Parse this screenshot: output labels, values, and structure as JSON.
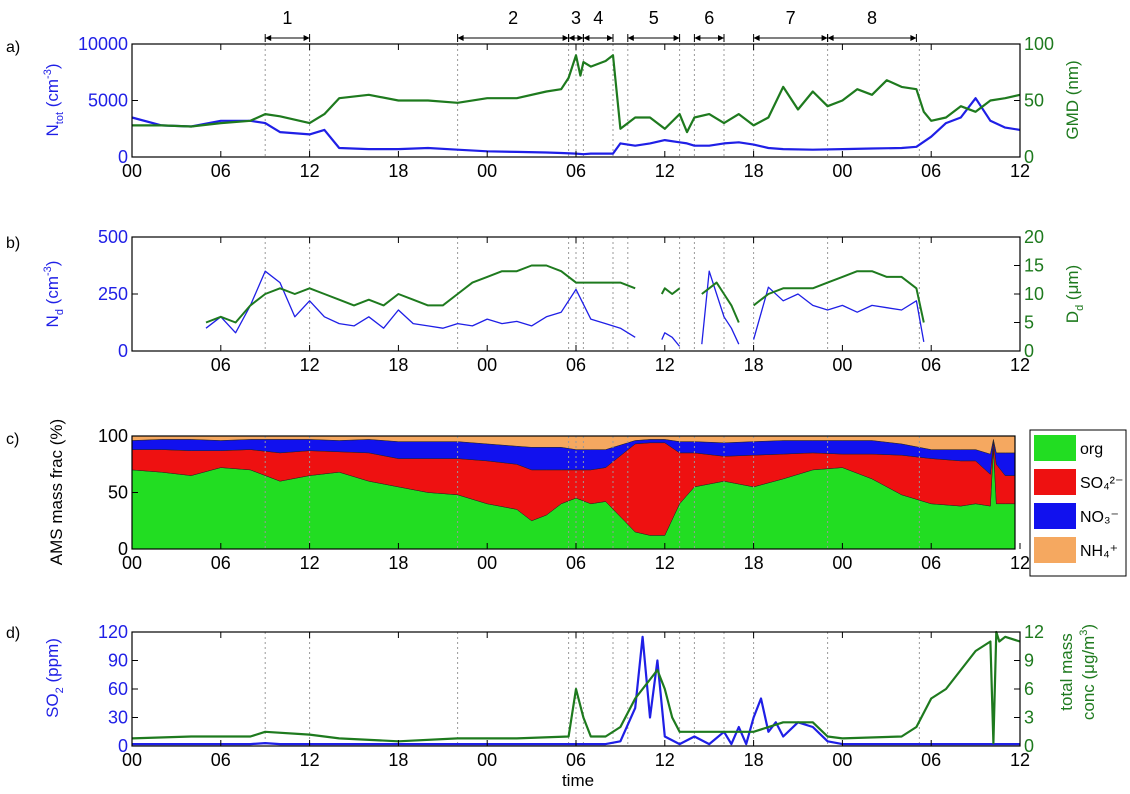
{
  "colors": {
    "blue": "#1f1fe6",
    "green": "#1e7a1e",
    "org": "#22dd22",
    "so4": "#ee1111",
    "no3": "#1111ee",
    "nh4": "#f5a860",
    "axis": "#000000",
    "guide": "#999999"
  },
  "time_ticks": [
    "00",
    "06",
    "12",
    "18",
    "00",
    "06",
    "12",
    "18",
    "00",
    "06",
    "12"
  ],
  "xlabel": "time",
  "periods": {
    "labels": [
      "1",
      "2",
      "3",
      "4",
      "5",
      "6",
      "7",
      "8"
    ],
    "ranges_h": [
      [
        9,
        12
      ],
      [
        22,
        29.5
      ],
      [
        29.5,
        30.5
      ],
      [
        30.5,
        32.5
      ],
      [
        33.5,
        37
      ],
      [
        38,
        40
      ],
      [
        42,
        47
      ],
      [
        47,
        53
      ]
    ]
  },
  "guide_lines_h": [
    9,
    12,
    22,
    29.5,
    30,
    30.5,
    32.5,
    33.5,
    37,
    38,
    40,
    42,
    47,
    53.2
  ],
  "panel_tags": [
    "a)",
    "b)",
    "c)",
    "d)"
  ],
  "chart_data": [
    {
      "type": "line",
      "panel": "a",
      "x_unit": "hours from first 00 tick",
      "xlim": [
        0,
        60
      ],
      "left_axis": {
        "label_main": "N",
        "label_sub": "tot",
        "label_unit": " (cm",
        "label_sup": "-3",
        "label_close": ")",
        "ylim": [
          0,
          10000
        ],
        "ticks": [
          "0",
          "5000",
          "10000"
        ]
      },
      "right_axis": {
        "label": "GMD (nm)",
        "ylim": [
          0,
          100
        ],
        "ticks": [
          "0",
          "50",
          "100"
        ]
      },
      "series": [
        {
          "color": "blue",
          "axis": "left",
          "x": [
            0,
            2,
            4,
            6,
            8,
            9,
            10,
            12,
            13,
            14,
            16,
            18,
            20,
            22,
            24,
            26,
            28,
            29,
            30,
            30.5,
            31,
            32,
            32.5,
            33,
            34,
            35,
            36,
            37,
            37.5,
            38,
            39,
            40,
            41,
            42,
            43,
            44,
            46,
            48,
            50,
            52,
            53,
            54,
            55,
            56,
            57,
            58,
            59,
            60
          ],
          "y": [
            3500,
            2800,
            2700,
            3200,
            3200,
            3000,
            2200,
            2000,
            2400,
            800,
            700,
            700,
            800,
            650,
            500,
            450,
            400,
            350,
            300,
            250,
            300,
            300,
            300,
            1200,
            1000,
            1200,
            1500,
            1300,
            1200,
            1000,
            1000,
            1200,
            1300,
            1100,
            800,
            700,
            650,
            700,
            750,
            800,
            900,
            1800,
            3000,
            3500,
            5200,
            3200,
            2600,
            2400
          ]
        },
        {
          "color": "green",
          "axis": "right",
          "x": [
            0,
            2,
            4,
            6,
            8,
            9,
            10,
            12,
            13,
            14,
            16,
            18,
            20,
            22,
            24,
            26,
            28,
            29,
            29.5,
            30,
            30.3,
            30.5,
            31,
            32,
            32.5,
            33,
            34,
            35,
            36,
            37,
            37.5,
            38,
            39,
            40,
            41,
            42,
            43,
            44,
            45,
            46,
            47,
            48,
            49,
            50,
            51,
            52,
            53,
            53.5,
            54,
            55,
            56,
            57,
            58,
            59,
            60
          ],
          "y": [
            28,
            28,
            27,
            30,
            32,
            38,
            36,
            30,
            38,
            52,
            55,
            50,
            50,
            48,
            52,
            52,
            58,
            60,
            70,
            90,
            72,
            84,
            80,
            85,
            90,
            25,
            35,
            35,
            25,
            38,
            22,
            35,
            38,
            30,
            38,
            28,
            35,
            62,
            42,
            58,
            45,
            50,
            60,
            55,
            68,
            62,
            60,
            40,
            32,
            35,
            45,
            40,
            50,
            52,
            55
          ]
        }
      ]
    },
    {
      "type": "line",
      "panel": "b",
      "x_unit": "hours from first 00 tick",
      "xlim": [
        0,
        60
      ],
      "left_axis": {
        "label_main": "N",
        "label_sub": "d",
        "label_unit": " (cm",
        "label_sup": "-3",
        "label_close": ")",
        "ylim": [
          0,
          500
        ],
        "ticks": [
          "0",
          "250",
          "500"
        ]
      },
      "right_axis": {
        "label_main": "D",
        "label_sub": "d",
        "label_unit": " (μm)",
        "ylim": [
          0,
          20
        ],
        "ticks": [
          "0",
          "5",
          "10",
          "15",
          "20"
        ]
      },
      "series": [
        {
          "color": "blue",
          "axis": "left",
          "segments": [
            {
              "x": [
                5,
                6,
                7,
                8,
                9,
                10,
                11,
                12,
                13,
                14,
                15,
                16,
                17,
                18,
                19,
                20,
                21,
                22,
                23,
                24,
                25,
                26,
                27,
                28,
                29,
                30,
                31,
                32,
                33,
                34
              ],
              "y": [
                100,
                150,
                80,
                200,
                350,
                300,
                150,
                220,
                150,
                120,
                110,
                150,
                100,
                180,
                120,
                110,
                100,
                120,
                110,
                140,
                120,
                130,
                110,
                150,
                170,
                270,
                140,
                120,
                100,
                60
              ]
            },
            {
              "x": [
                35.8,
                36,
                36.5,
                37
              ],
              "y": [
                50,
                80,
                60,
                20
              ]
            },
            {
              "x": [
                38.5,
                39,
                39.5,
                40,
                40.5,
                41
              ],
              "y": [
                30,
                350,
                250,
                150,
                100,
                30
              ]
            },
            {
              "x": [
                42,
                43,
                44,
                45,
                46,
                47,
                48,
                49,
                50,
                51,
                52,
                53,
                53.5
              ],
              "y": [
                50,
                280,
                220,
                250,
                200,
                180,
                200,
                170,
                200,
                190,
                180,
                220,
                40
              ]
            }
          ]
        },
        {
          "color": "green",
          "axis": "right",
          "segments": [
            {
              "x": [
                5,
                6,
                7,
                8,
                9,
                10,
                11,
                12,
                13,
                14,
                15,
                16,
                17,
                18,
                19,
                20,
                21,
                22,
                23,
                24,
                25,
                26,
                27,
                28,
                29,
                30,
                31,
                32,
                33,
                34
              ],
              "y": [
                5,
                6,
                5,
                8,
                10,
                11,
                10,
                11,
                10,
                9,
                8,
                9,
                8,
                10,
                9,
                8,
                8,
                10,
                12,
                13,
                14,
                14,
                15,
                15,
                14,
                12,
                12,
                12,
                12,
                11
              ]
            },
            {
              "x": [
                35.8,
                36,
                36.5,
                37
              ],
              "y": [
                10,
                11,
                10,
                11
              ]
            },
            {
              "x": [
                38.5,
                39,
                39.5,
                40,
                40.5,
                41
              ],
              "y": [
                10,
                11,
                12,
                10,
                8,
                5
              ]
            },
            {
              "x": [
                42,
                43,
                44,
                45,
                46,
                47,
                48,
                49,
                50,
                51,
                52,
                53,
                53.5
              ],
              "y": [
                8,
                10,
                11,
                11,
                11,
                12,
                13,
                14,
                14,
                13,
                13,
                11,
                5
              ]
            }
          ]
        }
      ]
    },
    {
      "type": "area",
      "panel": "c",
      "stacked": true,
      "xlim": [
        0,
        60
      ],
      "ylabel": "AMS mass frac (%)",
      "ylim": [
        0,
        100
      ],
      "yticks": [
        "0",
        "50",
        "100"
      ],
      "legend_position": "right",
      "x": [
        0,
        2,
        4,
        6,
        8,
        10,
        12,
        14,
        16,
        18,
        20,
        22,
        24,
        26,
        27,
        28,
        29,
        30,
        31,
        32,
        34,
        35,
        36,
        37,
        38,
        40,
        42,
        44,
        46,
        48,
        50,
        52,
        54,
        56,
        57,
        58,
        58.2,
        58.4,
        59,
        60
      ],
      "series": [
        {
          "name": "org",
          "color": "org",
          "values": [
            70,
            68,
            65,
            72,
            70,
            60,
            65,
            68,
            60,
            55,
            50,
            48,
            40,
            35,
            25,
            30,
            40,
            45,
            40,
            42,
            15,
            12,
            12,
            40,
            55,
            60,
            55,
            62,
            70,
            72,
            62,
            48,
            40,
            38,
            40,
            38,
            90,
            40,
            40,
            40
          ]
        },
        {
          "name": "SO₄²⁻",
          "color": "so4",
          "values": [
            18,
            20,
            22,
            15,
            18,
            25,
            22,
            18,
            25,
            25,
            30,
            32,
            38,
            40,
            45,
            40,
            30,
            25,
            30,
            30,
            78,
            82,
            82,
            45,
            30,
            22,
            28,
            22,
            15,
            12,
            22,
            35,
            40,
            40,
            38,
            28,
            5,
            35,
            25,
            25
          ]
        },
        {
          "name": "NO₃⁻",
          "color": "no3",
          "values": [
            8,
            9,
            10,
            9,
            9,
            12,
            10,
            10,
            12,
            15,
            15,
            15,
            15,
            16,
            20,
            20,
            20,
            18,
            18,
            16,
            3,
            3,
            3,
            10,
            10,
            12,
            12,
            12,
            11,
            12,
            12,
            10,
            8,
            10,
            10,
            18,
            2,
            10,
            20,
            20
          ]
        },
        {
          "name": "NH₄⁺",
          "color": "nh4",
          "values": [
            4,
            3,
            3,
            4,
            3,
            3,
            3,
            4,
            3,
            5,
            5,
            5,
            7,
            9,
            10,
            10,
            10,
            12,
            12,
            12,
            4,
            3,
            3,
            5,
            5,
            6,
            5,
            4,
            4,
            4,
            4,
            7,
            12,
            12,
            12,
            16,
            3,
            15,
            15,
            15
          ]
        }
      ]
    },
    {
      "type": "line",
      "panel": "d",
      "xlim": [
        0,
        60
      ],
      "left_axis": {
        "label_main": "SO",
        "label_sub": "2",
        "label_unit": " (ppm)",
        "ylim": [
          0,
          120
        ],
        "ticks": [
          "0",
          "30",
          "60",
          "90",
          "120"
        ]
      },
      "right_axis": {
        "label_line1": "total mass",
        "label_line2_main": "conc (μg/m",
        "label_line2_sup": "3",
        "label_line2_close": ")",
        "ylim": [
          0,
          12
        ],
        "ticks": [
          "0",
          "3",
          "6",
          "9",
          "12"
        ]
      },
      "series": [
        {
          "color": "blue",
          "axis": "left",
          "x": [
            0,
            8,
            9,
            10,
            12,
            14,
            20,
            30,
            32,
            33,
            34,
            34.5,
            35,
            35.5,
            36,
            37,
            38,
            39,
            40,
            40.5,
            41,
            41.5,
            42,
            42.5,
            43,
            43.5,
            44,
            45,
            46,
            47,
            48,
            50,
            55,
            57,
            58,
            58.5,
            59,
            60
          ],
          "y": [
            2,
            2,
            3,
            2,
            2,
            2,
            2,
            2,
            2,
            5,
            40,
            115,
            30,
            90,
            10,
            2,
            10,
            2,
            15,
            2,
            20,
            2,
            30,
            50,
            15,
            25,
            10,
            25,
            20,
            5,
            2,
            2,
            2,
            2,
            2,
            2,
            2,
            2
          ]
        },
        {
          "color": "green",
          "axis": "right",
          "x": [
            0,
            4,
            8,
            9,
            12,
            14,
            18,
            22,
            26,
            29.5,
            30,
            30.5,
            31,
            32,
            33,
            34,
            35,
            35.5,
            36,
            36.5,
            37,
            38,
            40,
            42,
            44,
            46,
            47,
            48,
            52,
            53,
            54,
            55,
            56,
            57,
            58,
            58.2,
            58.4,
            58.6,
            59,
            60
          ],
          "y": [
            0.8,
            1,
            1,
            1.5,
            1.2,
            0.8,
            0.5,
            0.8,
            0.8,
            1,
            6,
            3,
            1,
            1,
            2,
            5,
            7,
            8,
            6,
            3,
            1.5,
            1.5,
            1.5,
            1.5,
            2.5,
            2.5,
            1,
            0.8,
            1,
            2,
            5,
            6,
            8,
            10,
            11,
            0.3,
            12,
            11,
            11.5,
            11
          ]
        }
      ]
    }
  ]
}
